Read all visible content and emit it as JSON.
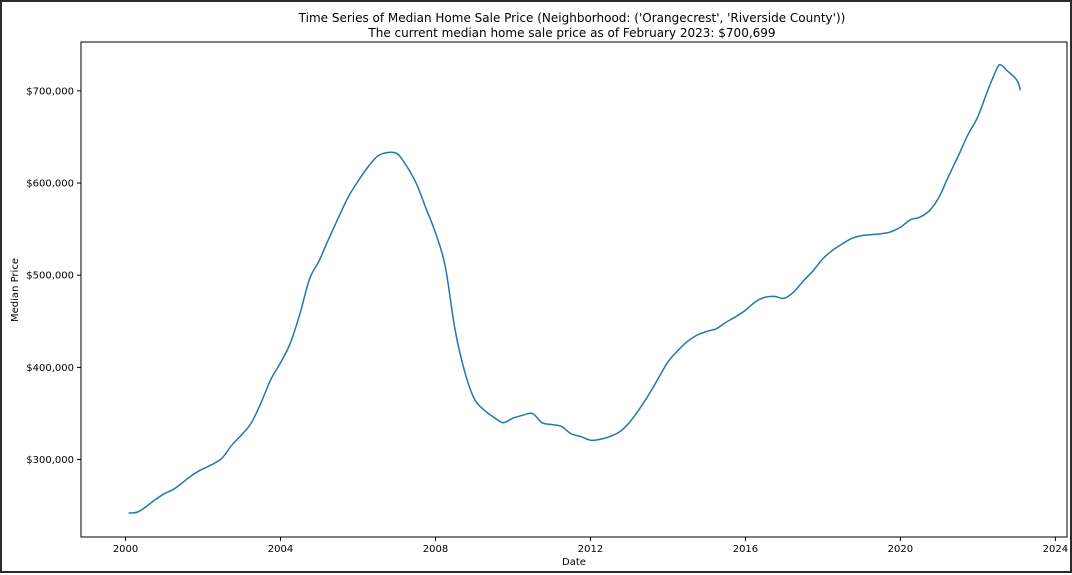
{
  "chart_data": {
    "type": "line",
    "title": "Time Series of Median Home Sale Price (Neighborhood: ('Orangecrest', 'Riverside County'))",
    "subtitle": "The current median home sale price as of February 2023: $700,699",
    "xlabel": "Date",
    "ylabel": "Median Price",
    "xlim": [
      1998.85,
      2024.3
    ],
    "ylim": [
      216000,
      753000
    ],
    "x_ticks": [
      2000,
      2004,
      2008,
      2012,
      2016,
      2020,
      2024
    ],
    "x_tick_labels": [
      "2000",
      "2004",
      "2008",
      "2012",
      "2016",
      "2020",
      "2024"
    ],
    "y_ticks": [
      300000,
      400000,
      500000,
      600000,
      700000
    ],
    "y_tick_labels": [
      "$300,000",
      "$400,000",
      "$500,000",
      "$600,000",
      "$700,000"
    ],
    "grid": false,
    "series": [
      {
        "color": "#1f77b4",
        "x": [
          2000.08,
          2000.3,
          2000.5,
          2000.75,
          2001.0,
          2001.25,
          2001.5,
          2001.75,
          2002.0,
          2002.25,
          2002.5,
          2002.75,
          2003.0,
          2003.25,
          2003.5,
          2003.75,
          2004.0,
          2004.25,
          2004.5,
          2004.75,
          2005.0,
          2005.25,
          2005.5,
          2005.75,
          2006.0,
          2006.25,
          2006.5,
          2006.75,
          2007.0,
          2007.2,
          2007.5,
          2007.75,
          2008.0,
          2008.25,
          2008.5,
          2008.75,
          2009.0,
          2009.25,
          2009.5,
          2009.75,
          2010.0,
          2010.25,
          2010.5,
          2010.75,
          2011.0,
          2011.25,
          2011.5,
          2011.75,
          2012.0,
          2012.25,
          2012.5,
          2012.75,
          2013.0,
          2013.25,
          2013.5,
          2013.75,
          2014.0,
          2014.25,
          2014.5,
          2014.75,
          2015.0,
          2015.25,
          2015.5,
          2015.75,
          2016.0,
          2016.25,
          2016.5,
          2016.75,
          2017.0,
          2017.25,
          2017.5,
          2017.75,
          2018.0,
          2018.25,
          2018.5,
          2018.75,
          2019.0,
          2019.25,
          2019.5,
          2019.75,
          2020.0,
          2020.25,
          2020.5,
          2020.75,
          2021.0,
          2021.25,
          2021.5,
          2021.75,
          2022.0,
          2022.25,
          2022.5,
          2022.6,
          2022.75,
          2023.0,
          2023.1
        ],
        "values": [
          242000,
          243000,
          248000,
          256000,
          263000,
          268000,
          276000,
          284000,
          290000,
          295000,
          302000,
          316000,
          327000,
          340000,
          362000,
          387000,
          405000,
          426000,
          458000,
          496000,
          516000,
          540000,
          563000,
          585000,
          602000,
          617000,
          629000,
          633000,
          632000,
          622000,
          600000,
          573000,
          546000,
          510000,
          442000,
          396000,
          366000,
          354000,
          346000,
          340000,
          345000,
          348000,
          350000,
          340000,
          338000,
          336000,
          328000,
          325000,
          321000,
          322000,
          325000,
          330000,
          340000,
          354000,
          370000,
          388000,
          406000,
          418000,
          428000,
          435000,
          439000,
          442000,
          449000,
          455000,
          462000,
          471000,
          476000,
          477000,
          475000,
          482000,
          494000,
          505000,
          518000,
          527000,
          534000,
          540000,
          543000,
          544000,
          545000,
          547000,
          552000,
          560000,
          563000,
          570000,
          585000,
          608000,
          630000,
          653000,
          672000,
          700000,
          725000,
          728000,
          722000,
          712000,
          700699
        ]
      }
    ]
  }
}
